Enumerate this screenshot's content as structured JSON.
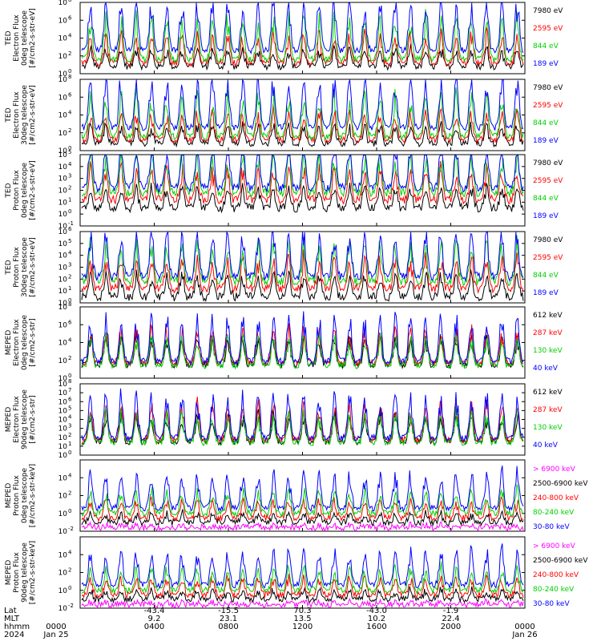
{
  "colors": {
    "black": "#000000",
    "red": "#ff0000",
    "green": "#00d000",
    "blue": "#0000ff",
    "magenta": "#ff00ff"
  },
  "footer": {
    "row_labels": [
      "Lat",
      "MLT",
      "hhmm",
      "2024"
    ],
    "start": {
      "hhmm": "0000",
      "date": "Jan 25"
    },
    "end": {
      "hhmm": "0000",
      "date": "Jan 26"
    },
    "ticks": [
      {
        "lat": "-43.4",
        "mlt": "9.2",
        "hhmm": "0400"
      },
      {
        "lat": "-15.5",
        "mlt": "23.1",
        "hhmm": "0800"
      },
      {
        "lat": "70.3",
        "mlt": "13.5",
        "hhmm": "1200"
      },
      {
        "lat": "-43.0",
        "mlt": "10.2",
        "hhmm": "1600"
      },
      {
        "lat": "-1.9",
        "mlt": "22.4",
        "hhmm": "2000"
      }
    ]
  },
  "chart_data": [
    {
      "type": "line",
      "ylabel": [
        "TED",
        "Electron Flux",
        "0deg telescope",
        "[#/cm2-s-str-eV]"
      ],
      "y_scale": "log",
      "yexp": [
        0,
        2,
        4,
        6,
        8
      ],
      "ylim_exp": [
        0,
        8
      ],
      "series": [
        {
          "name": "7980 eV",
          "color": "black"
        },
        {
          "name": "2595 eV",
          "color": "red"
        },
        {
          "name": "844 eV",
          "color": "green"
        },
        {
          "name": "189 eV",
          "color": "blue"
        }
      ]
    },
    {
      "type": "line",
      "ylabel": [
        "TED",
        "Electron Flux",
        "30deg telescope",
        "[#/cm2-s-str-eV]"
      ],
      "y_scale": "log",
      "yexp": [
        0,
        2,
        4,
        6,
        8
      ],
      "ylim_exp": [
        0,
        8
      ],
      "series": [
        {
          "name": "7980 eV",
          "color": "black"
        },
        {
          "name": "2595 eV",
          "color": "red"
        },
        {
          "name": "844 eV",
          "color": "green"
        },
        {
          "name": "189 eV",
          "color": "blue"
        }
      ]
    },
    {
      "type": "line",
      "ylabel": [
        "TED",
        "Proton Flux",
        "0deg telescope",
        "[#/cm2-s-str-eV]"
      ],
      "y_scale": "log",
      "yexp": [
        -1,
        0,
        1,
        2,
        3,
        4,
        5
      ],
      "ylim_exp": [
        -1,
        5
      ],
      "series": [
        {
          "name": "7980 eV",
          "color": "black"
        },
        {
          "name": "2595 eV",
          "color": "red"
        },
        {
          "name": "844 eV",
          "color": "green"
        },
        {
          "name": "189 eV",
          "color": "blue"
        }
      ]
    },
    {
      "type": "line",
      "ylabel": [
        "TED",
        "Proton Flux",
        "30deg telescope",
        "[#/cm2-s-str-eV]"
      ],
      "y_scale": "log",
      "yexp": [
        0,
        1,
        2,
        3,
        4,
        5,
        6
      ],
      "ylim_exp": [
        0,
        6
      ],
      "series": [
        {
          "name": "7980 eV",
          "color": "black"
        },
        {
          "name": "2595 eV",
          "color": "red"
        },
        {
          "name": "844 eV",
          "color": "green"
        },
        {
          "name": "189 eV",
          "color": "blue"
        }
      ]
    },
    {
      "type": "line",
      "ylabel": [
        "MEPED",
        "Electron Flux",
        "0deg telescope",
        "[#/cm2-s-str]"
      ],
      "y_scale": "log",
      "yexp": [
        0,
        2,
        4,
        6,
        8
      ],
      "ylim_exp": [
        0,
        8
      ],
      "series": [
        {
          "name": "612 keV",
          "color": "black"
        },
        {
          "name": "287 keV",
          "color": "red"
        },
        {
          "name": "130 keV",
          "color": "green"
        },
        {
          "name": "40 keV",
          "color": "blue"
        }
      ]
    },
    {
      "type": "line",
      "ylabel": [
        "MEPED",
        "Electron Flux",
        "90deg telescope",
        "[#/cm2-s-str]"
      ],
      "y_scale": "log",
      "yexp": [
        0,
        1,
        2,
        3,
        4,
        5,
        6,
        7,
        8
      ],
      "ylim_exp": [
        0,
        8
      ],
      "series": [
        {
          "name": "612 keV",
          "color": "black"
        },
        {
          "name": "287 keV",
          "color": "red"
        },
        {
          "name": "130 keV",
          "color": "green"
        },
        {
          "name": "40 keV",
          "color": "blue"
        }
      ]
    },
    {
      "type": "line",
      "ylabel": [
        "MEPED",
        "Proton Flux",
        "0deg telescope",
        "[#/cm2-s-str-keV]"
      ],
      "y_scale": "log",
      "yexp": [
        -2,
        0,
        2,
        4
      ],
      "ylim_exp": [
        -2,
        6
      ],
      "series": [
        {
          "name": "> 6900 keV",
          "color": "magenta"
        },
        {
          "name": "2500-6900 keV",
          "color": "black"
        },
        {
          "name": "240-800 keV",
          "color": "red"
        },
        {
          "name": "80-240 keV",
          "color": "green"
        },
        {
          "name": "30-80 keV",
          "color": "blue"
        }
      ]
    },
    {
      "type": "line",
      "ylabel": [
        "MEPED",
        "Proton Flux",
        "90deg telescope",
        "[#/cm2-s-str-keV]"
      ],
      "y_scale": "log",
      "yexp": [
        -2,
        0,
        2,
        4
      ],
      "ylim_exp": [
        -2,
        6
      ],
      "series": [
        {
          "name": "> 6900 keV",
          "color": "magenta"
        },
        {
          "name": "2500-6900 keV",
          "color": "black"
        },
        {
          "name": "240-800 keV",
          "color": "red"
        },
        {
          "name": "80-240 keV",
          "color": "green"
        },
        {
          "name": "30-80 keV",
          "color": "blue"
        }
      ]
    }
  ]
}
